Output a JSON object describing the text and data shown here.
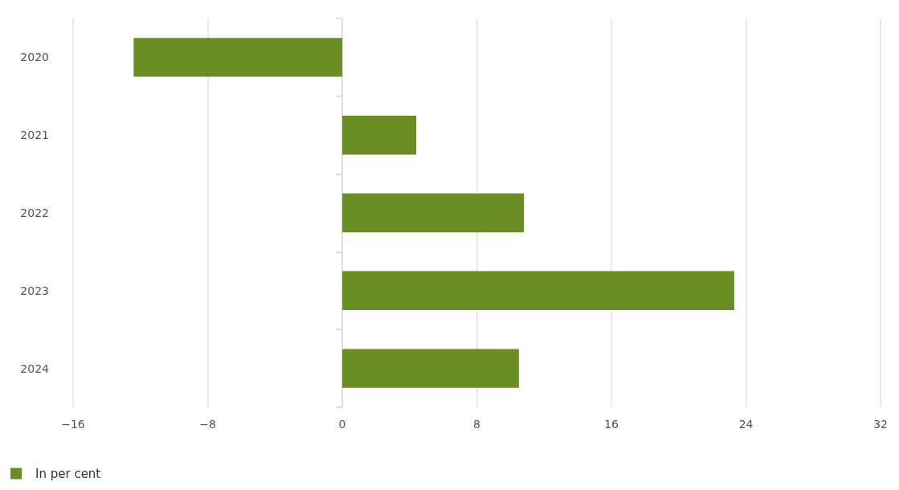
{
  "chart_data": {
    "type": "bar",
    "orientation": "horizontal",
    "categories": [
      "2020",
      "2021",
      "2022",
      "2023",
      "2024"
    ],
    "series": [
      {
        "name": "In per cent",
        "color": "#6b8e23",
        "values": [
          -12.4,
          4.4,
          10.8,
          23.3,
          10.5
        ]
      }
    ],
    "xlim": [
      -16,
      32
    ],
    "xticks": [
      -16,
      -8,
      0,
      8,
      16,
      24,
      32
    ],
    "grid": "x",
    "legend": "bottom left"
  }
}
